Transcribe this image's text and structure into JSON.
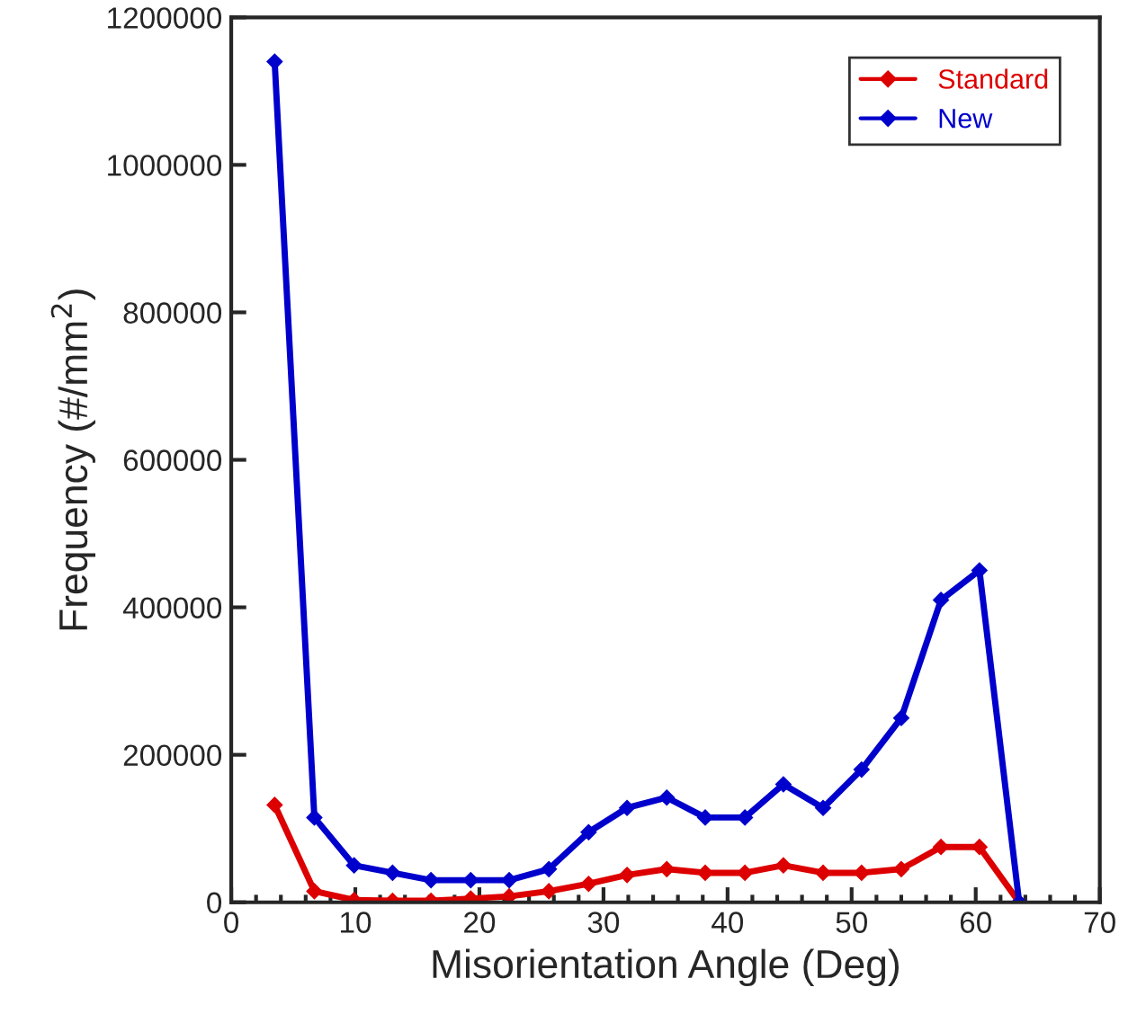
{
  "chart_data": {
    "type": "line",
    "xlabel": "Misorientation Angle (Deg)",
    "ylabel": "Frequency (#/mm$^{2}$)",
    "x": [
      3.5,
      6.7,
      9.9,
      13,
      16.1,
      19.3,
      22.4,
      25.6,
      28.8,
      31.9,
      35.1,
      38.2,
      41.4,
      44.5,
      47.7,
      50.8,
      54,
      57.2,
      60.3,
      63.5
    ],
    "series": [
      {
        "name": "Standard",
        "color": "#dd0000",
        "values": [
          132000,
          15000,
          3000,
          2000,
          2000,
          5000,
          8000,
          15000,
          25000,
          37000,
          45000,
          40000,
          40000,
          50000,
          40000,
          40000,
          45000,
          75000,
          75000,
          0
        ]
      },
      {
        "name": "New",
        "color": "#0000cc",
        "values": [
          1140000,
          115000,
          50000,
          40000,
          30000,
          30000,
          30000,
          45000,
          95000,
          128000,
          142000,
          115000,
          115000,
          160000,
          128000,
          180000,
          250000,
          410000,
          450000,
          0
        ]
      }
    ],
    "xlim": [
      0,
      70
    ],
    "xticks": [
      0,
      10,
      20,
      30,
      40,
      50,
      60,
      70
    ],
    "ylim": [
      0,
      1200000
    ],
    "yticks": [
      0,
      200000,
      400000,
      600000,
      800000,
      1000000,
      1200000
    ],
    "legend": "top right",
    "marker": "diamond",
    "line_style": "solid",
    "grid": false
  }
}
